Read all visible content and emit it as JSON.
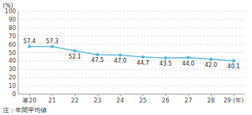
{
  "chart_data": {
    "type": "line",
    "y_label": "(%)",
    "annotations": [
      "注：年間平均値"
    ],
    "categories": [
      "幂20",
      "21",
      "22",
      "23",
      "24",
      "25",
      "26",
      "27",
      "28",
      "29 (年)"
    ],
    "values": [
      57.4,
      57.3,
      52.1,
      47.5,
      47.0,
      44.7,
      43.5,
      44.0,
      42.0,
      40.1
    ],
    "value_labels": [
      "57.4",
      "57.3",
      "52.1",
      "47.5",
      "47.0",
      "44.7",
      "43.5",
      "44.0",
      "42.0",
      "40.1"
    ],
    "color": "#5ab8d8",
    "marker": "circle",
    "ylim": [
      0,
      100
    ],
    "yticks": [
      0,
      10,
      20,
      30,
      40,
      50,
      60,
      70,
      80,
      90,
      100
    ],
    "grid": true,
    "data_labels": true
  }
}
